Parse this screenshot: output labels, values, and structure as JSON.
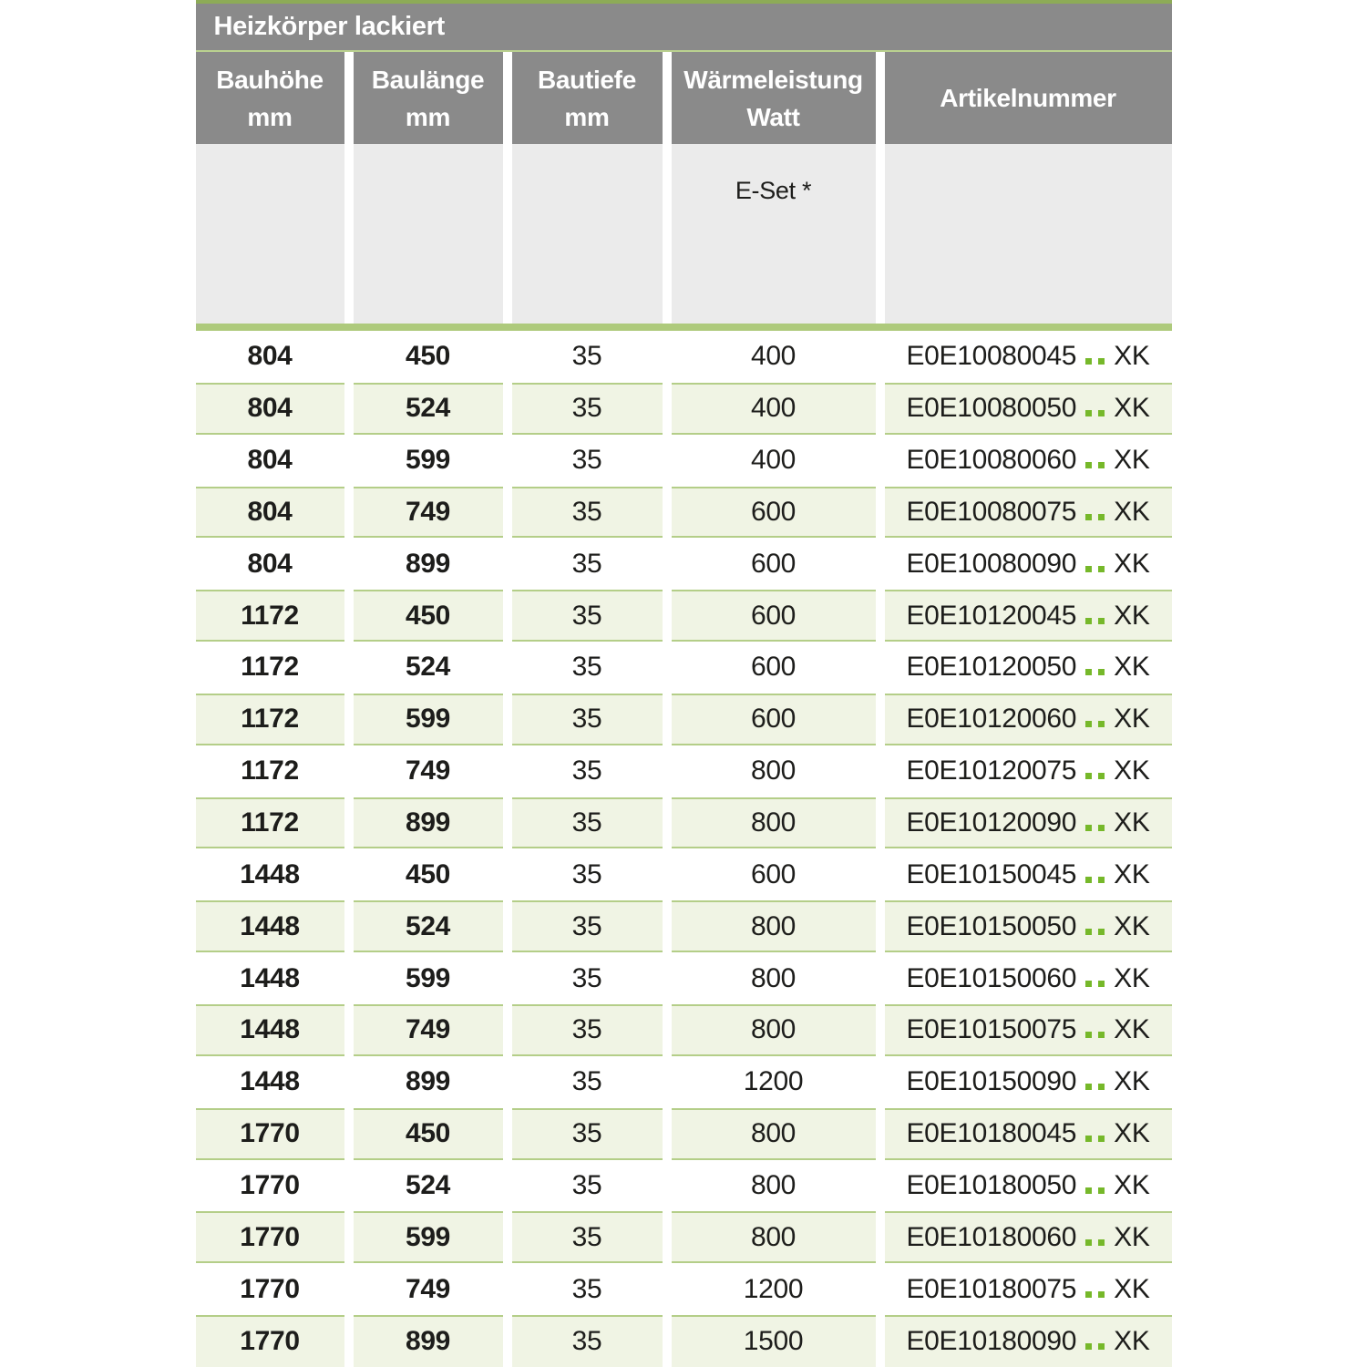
{
  "title": "Heizkörper lackiert",
  "columns": [
    {
      "key": "bauhoehe",
      "label": "Bauhöhe",
      "unit": "mm"
    },
    {
      "key": "baulaenge",
      "label": "Baulänge",
      "unit": "mm"
    },
    {
      "key": "bautiefe",
      "label": "Bautiefe",
      "unit": "mm"
    },
    {
      "key": "waermeleistung",
      "label": "Wärmeleistung",
      "unit": "Watt"
    },
    {
      "key": "artikelnummer",
      "label": "Artikelnummer",
      "unit": ""
    }
  ],
  "subheader": {
    "eset_label": "E-Set *"
  },
  "article_separator": "..",
  "rows": [
    {
      "bauhoehe": "804",
      "baulaenge": "450",
      "bautiefe": "35",
      "watt": "400",
      "artikel": "E0E10080045",
      "suffix": "XK"
    },
    {
      "bauhoehe": "804",
      "baulaenge": "524",
      "bautiefe": "35",
      "watt": "400",
      "artikel": "E0E10080050",
      "suffix": "XK"
    },
    {
      "bauhoehe": "804",
      "baulaenge": "599",
      "bautiefe": "35",
      "watt": "400",
      "artikel": "E0E10080060",
      "suffix": "XK"
    },
    {
      "bauhoehe": "804",
      "baulaenge": "749",
      "bautiefe": "35",
      "watt": "600",
      "artikel": "E0E10080075",
      "suffix": "XK"
    },
    {
      "bauhoehe": "804",
      "baulaenge": "899",
      "bautiefe": "35",
      "watt": "600",
      "artikel": "E0E10080090",
      "suffix": "XK"
    },
    {
      "bauhoehe": "1172",
      "baulaenge": "450",
      "bautiefe": "35",
      "watt": "600",
      "artikel": "E0E10120045",
      "suffix": "XK"
    },
    {
      "bauhoehe": "1172",
      "baulaenge": "524",
      "bautiefe": "35",
      "watt": "600",
      "artikel": "E0E10120050",
      "suffix": "XK"
    },
    {
      "bauhoehe": "1172",
      "baulaenge": "599",
      "bautiefe": "35",
      "watt": "600",
      "artikel": "E0E10120060",
      "suffix": "XK"
    },
    {
      "bauhoehe": "1172",
      "baulaenge": "749",
      "bautiefe": "35",
      "watt": "800",
      "artikel": "E0E10120075",
      "suffix": "XK"
    },
    {
      "bauhoehe": "1172",
      "baulaenge": "899",
      "bautiefe": "35",
      "watt": "800",
      "artikel": "E0E10120090",
      "suffix": "XK"
    },
    {
      "bauhoehe": "1448",
      "baulaenge": "450",
      "bautiefe": "35",
      "watt": "600",
      "artikel": "E0E10150045",
      "suffix": "XK"
    },
    {
      "bauhoehe": "1448",
      "baulaenge": "524",
      "bautiefe": "35",
      "watt": "800",
      "artikel": "E0E10150050",
      "suffix": "XK"
    },
    {
      "bauhoehe": "1448",
      "baulaenge": "599",
      "bautiefe": "35",
      "watt": "800",
      "artikel": "E0E10150060",
      "suffix": "XK"
    },
    {
      "bauhoehe": "1448",
      "baulaenge": "749",
      "bautiefe": "35",
      "watt": "800",
      "artikel": "E0E10150075",
      "suffix": "XK"
    },
    {
      "bauhoehe": "1448",
      "baulaenge": "899",
      "bautiefe": "35",
      "watt": "1200",
      "artikel": "E0E10150090",
      "suffix": "XK"
    },
    {
      "bauhoehe": "1770",
      "baulaenge": "450",
      "bautiefe": "35",
      "watt": "800",
      "artikel": "E0E10180045",
      "suffix": "XK"
    },
    {
      "bauhoehe": "1770",
      "baulaenge": "524",
      "bautiefe": "35",
      "watt": "800",
      "artikel": "E0E10180050",
      "suffix": "XK"
    },
    {
      "bauhoehe": "1770",
      "baulaenge": "599",
      "bautiefe": "35",
      "watt": "800",
      "artikel": "E0E10180060",
      "suffix": "XK"
    },
    {
      "bauhoehe": "1770",
      "baulaenge": "749",
      "bautiefe": "35",
      "watt": "1200",
      "artikel": "E0E10180075",
      "suffix": "XK"
    },
    {
      "bauhoehe": "1770",
      "baulaenge": "899",
      "bautiefe": "35",
      "watt": "1500",
      "artikel": "E0E10180090",
      "suffix": "XK"
    }
  ],
  "colors": {
    "header_gray": "#8a8a8a",
    "subheader_gray": "#ebebeb",
    "row_green": "#f0f4e4",
    "separator_green": "#b4ce88",
    "thick_line_green": "#aeca7c",
    "title_divider_green": "#bad18f",
    "top_line_green": "#8dab57",
    "dot_green": "#76b82a",
    "text_dark": "#1d1d1b"
  }
}
